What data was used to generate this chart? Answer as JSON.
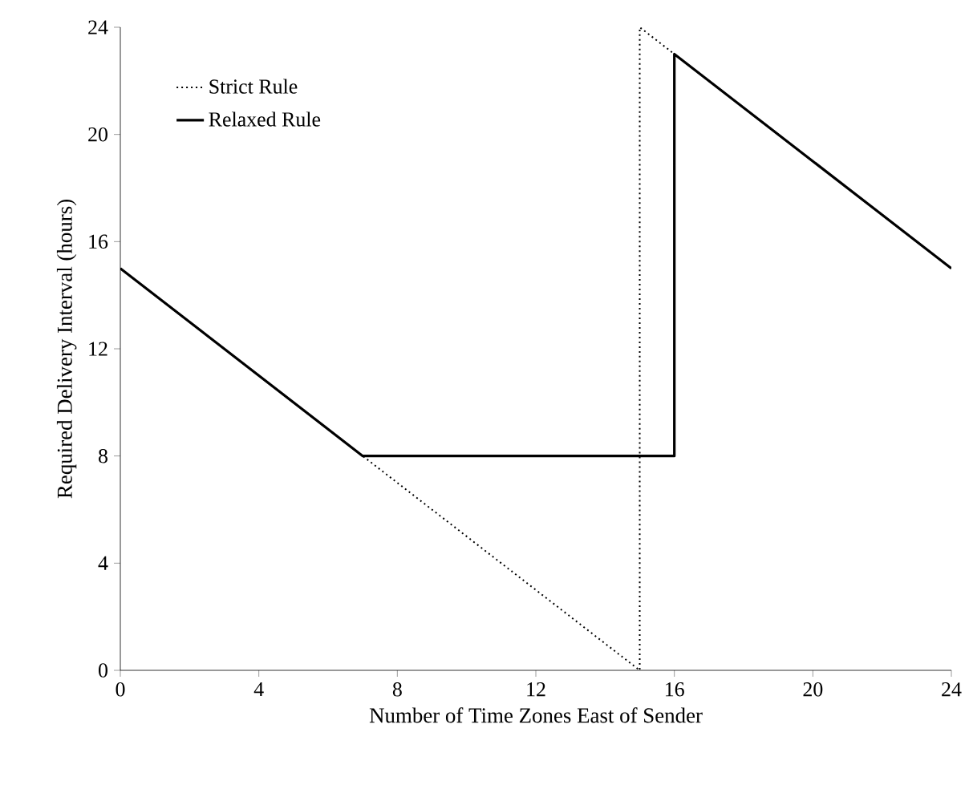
{
  "chart_data": {
    "type": "line",
    "xlabel": "Number of Time Zones East of Sender",
    "ylabel": "Required Delivery Interval (hours)",
    "xlim": [
      0,
      24
    ],
    "xticks": [
      0,
      4,
      8,
      12,
      16,
      20,
      24
    ],
    "ylim": [
      0,
      24
    ],
    "yticks": [
      0,
      4,
      8,
      12,
      16,
      20,
      24
    ],
    "grid": false,
    "legend": "top left",
    "marker": "none",
    "series": [
      {
        "name": "Strict Rule",
        "color": "#000000",
        "line_style": "dotted",
        "x": [
          0,
          7,
          15,
          15,
          24
        ],
        "values": [
          15,
          8,
          0,
          24,
          15
        ]
      },
      {
        "name": "Relaxed Rule",
        "color": "#000000",
        "line_style": "solid",
        "x": [
          0,
          7,
          16,
          16,
          24
        ],
        "values": [
          15,
          8,
          8,
          23,
          15
        ]
      }
    ]
  }
}
